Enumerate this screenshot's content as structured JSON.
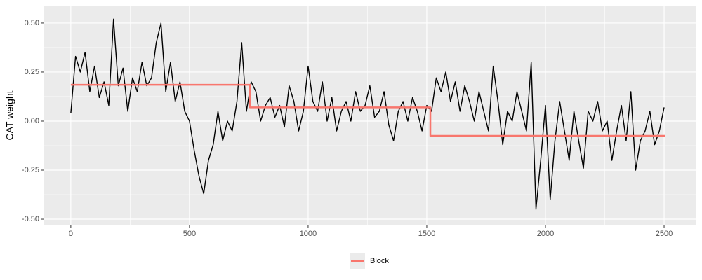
{
  "chart_data": {
    "type": "line",
    "y_label": "CAT weight",
    "xlim": [
      -115,
      2636
    ],
    "ylim": [
      -0.532,
      0.589
    ],
    "xticks": [
      0,
      500,
      1000,
      1500,
      2000,
      2500
    ],
    "yticks": [
      {
        "value": -0.5,
        "label": "-0.50"
      },
      {
        "value": -0.25,
        "label": "-0.25"
      },
      {
        "value": 0,
        "label": "0.00"
      },
      {
        "value": 0.25,
        "label": "0.25"
      },
      {
        "value": 0.5,
        "label": "0.50"
      }
    ],
    "grid": true,
    "legend_position": "bottom",
    "series": [
      {
        "color": "#000000",
        "x": [
          0,
          20,
          40,
          60,
          80,
          100,
          120,
          140,
          160,
          180,
          200,
          220,
          240,
          260,
          280,
          300,
          320,
          340,
          360,
          380,
          400,
          420,
          440,
          460,
          480,
          500,
          520,
          540,
          560,
          580,
          600,
          620,
          640,
          660,
          680,
          700,
          720,
          740,
          760,
          780,
          800,
          820,
          840,
          860,
          880,
          900,
          920,
          940,
          960,
          980,
          1000,
          1020,
          1040,
          1060,
          1080,
          1100,
          1120,
          1140,
          1160,
          1180,
          1200,
          1220,
          1240,
          1260,
          1280,
          1300,
          1320,
          1340,
          1360,
          1380,
          1400,
          1420,
          1440,
          1460,
          1480,
          1500,
          1520,
          1540,
          1560,
          1580,
          1600,
          1620,
          1640,
          1660,
          1680,
          1700,
          1720,
          1740,
          1760,
          1780,
          1800,
          1820,
          1840,
          1860,
          1880,
          1900,
          1920,
          1940,
          1960,
          1980,
          2000,
          2020,
          2040,
          2060,
          2080,
          2100,
          2120,
          2140,
          2160,
          2180,
          2200,
          2220,
          2240,
          2260,
          2280,
          2300,
          2320,
          2340,
          2360,
          2380,
          2400,
          2420,
          2440,
          2460,
          2480,
          2500
        ],
        "values": [
          0.04,
          0.33,
          0.25,
          0.35,
          0.15,
          0.28,
          0.12,
          0.2,
          0.08,
          0.52,
          0.18,
          0.27,
          0.05,
          0.22,
          0.15,
          0.3,
          0.18,
          0.22,
          0.4,
          0.5,
          0.15,
          0.3,
          0.1,
          0.2,
          0.05,
          0.0,
          -0.15,
          -0.28,
          -0.37,
          -0.2,
          -0.12,
          0.05,
          -0.1,
          0.0,
          -0.05,
          0.1,
          0.4,
          0.05,
          0.2,
          0.15,
          0.0,
          0.08,
          0.12,
          0.02,
          0.08,
          -0.03,
          0.18,
          0.1,
          -0.05,
          0.05,
          0.28,
          0.1,
          0.05,
          0.2,
          0.0,
          0.12,
          -0.05,
          0.05,
          0.1,
          0.0,
          0.15,
          0.05,
          0.08,
          0.18,
          0.02,
          0.05,
          0.15,
          -0.02,
          -0.1,
          0.05,
          0.1,
          0.0,
          0.12,
          0.05,
          -0.05,
          0.08,
          0.05,
          0.22,
          0.15,
          0.25,
          0.1,
          0.2,
          0.05,
          0.18,
          0.1,
          0.0,
          0.15,
          0.05,
          -0.05,
          0.28,
          0.1,
          -0.12,
          0.05,
          0.0,
          0.15,
          0.05,
          -0.05,
          0.3,
          -0.45,
          -0.2,
          0.08,
          -0.4,
          -0.1,
          0.1,
          -0.05,
          -0.2,
          0.05,
          -0.1,
          -0.24,
          0.05,
          0.0,
          0.1,
          -0.05,
          0.0,
          -0.2,
          -0.05,
          0.08,
          -0.1,
          0.15,
          -0.25,
          -0.1,
          -0.05,
          0.05,
          -0.12,
          -0.05,
          0.07
        ]
      },
      {
        "name": "Block",
        "color": "#f8766d",
        "x": [
          0,
          755,
          755,
          1515,
          1515,
          2505
        ],
        "values": [
          0.185,
          0.185,
          0.07,
          0.07,
          -0.075,
          -0.075
        ]
      }
    ]
  }
}
